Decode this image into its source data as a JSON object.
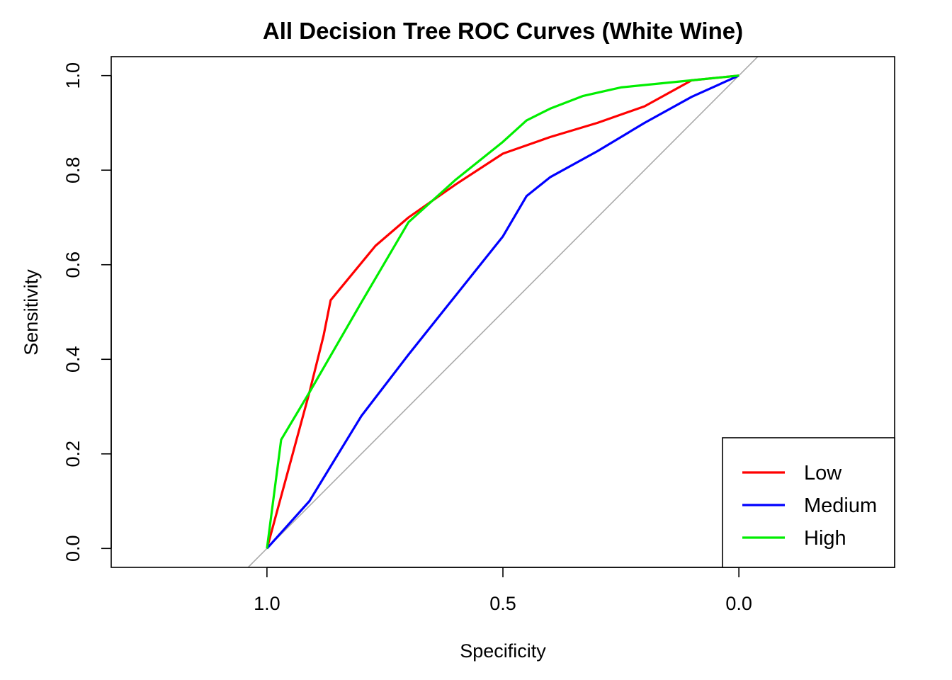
{
  "chart_data": {
    "type": "line",
    "title": "All Decision Tree ROC Curves (White Wine)",
    "xlabel": "Specificity",
    "ylabel": "Sensitivity",
    "x_reversed": true,
    "xlim": [
      1.33,
      -0.33
    ],
    "ylim": [
      -0.04,
      1.04
    ],
    "x_ticks": [
      "1.0",
      "0.5",
      "0.0"
    ],
    "x_tick_values": [
      1.0,
      0.5,
      0.0
    ],
    "y_ticks": [
      "0.0",
      "0.2",
      "0.4",
      "0.6",
      "0.8",
      "1.0"
    ],
    "y_tick_values": [
      0.0,
      0.2,
      0.4,
      0.6,
      0.8,
      1.0
    ],
    "legend_position": "bottom-right",
    "reference_line": {
      "color": "#aaaaaa",
      "description": "diagonal"
    },
    "series": [
      {
        "name": "Low",
        "color": "#ff0000",
        "points": [
          [
            1.0,
            0.0
          ],
          [
            0.91,
            0.33
          ],
          [
            0.88,
            0.45
          ],
          [
            0.865,
            0.525
          ],
          [
            0.77,
            0.64
          ],
          [
            0.7,
            0.7
          ],
          [
            0.6,
            0.77
          ],
          [
            0.5,
            0.835
          ],
          [
            0.4,
            0.87
          ],
          [
            0.3,
            0.9
          ],
          [
            0.2,
            0.935
          ],
          [
            0.1,
            0.99
          ],
          [
            0.0,
            1.0
          ]
        ]
      },
      {
        "name": "Medium",
        "color": "#0000ff",
        "points": [
          [
            1.0,
            0.0
          ],
          [
            0.91,
            0.1
          ],
          [
            0.8,
            0.28
          ],
          [
            0.7,
            0.41
          ],
          [
            0.6,
            0.535
          ],
          [
            0.5,
            0.66
          ],
          [
            0.45,
            0.745
          ],
          [
            0.4,
            0.785
          ],
          [
            0.3,
            0.84
          ],
          [
            0.2,
            0.9
          ],
          [
            0.1,
            0.955
          ],
          [
            0.0,
            1.0
          ]
        ]
      },
      {
        "name": "High",
        "color": "#00ee00",
        "points": [
          [
            1.0,
            0.0
          ],
          [
            0.97,
            0.23
          ],
          [
            0.91,
            0.33
          ],
          [
            0.8,
            0.52
          ],
          [
            0.7,
            0.69
          ],
          [
            0.6,
            0.78
          ],
          [
            0.5,
            0.86
          ],
          [
            0.45,
            0.905
          ],
          [
            0.4,
            0.93
          ],
          [
            0.33,
            0.957
          ],
          [
            0.25,
            0.975
          ],
          [
            0.1,
            0.99
          ],
          [
            0.0,
            1.0
          ]
        ]
      }
    ]
  }
}
